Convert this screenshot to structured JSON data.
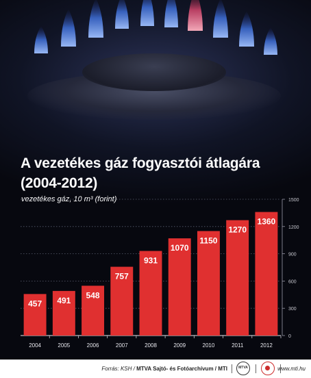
{
  "title": "A vezetékes gáz fogyasztói átlagára",
  "title_line2": "(2004-2012)",
  "subtitle": "vezetékes gáz, 10 m³ (forint)",
  "colors": {
    "bar": "#e03030",
    "background": "#0b0d18",
    "flame": "#3f6fd8"
  },
  "chart_data": {
    "type": "bar",
    "categories": [
      "2004",
      "2005",
      "2006",
      "2007",
      "2008",
      "2009",
      "2010",
      "2011",
      "2012"
    ],
    "values": [
      457,
      491,
      548,
      757,
      931,
      1070,
      1150,
      1270,
      1360
    ],
    "ylim": [
      0,
      1500
    ],
    "yticks": [
      0,
      300,
      600,
      900,
      1200,
      1500
    ],
    "grid": true,
    "y_axis_position": "right"
  },
  "footer": {
    "source_prefix": "Forrás: KSH /",
    "source_bold": "MTVA Sajtó- és Fotóarchívum / MTI",
    "logo_mtva": "MTVA",
    "url": "www.mti.hu"
  }
}
